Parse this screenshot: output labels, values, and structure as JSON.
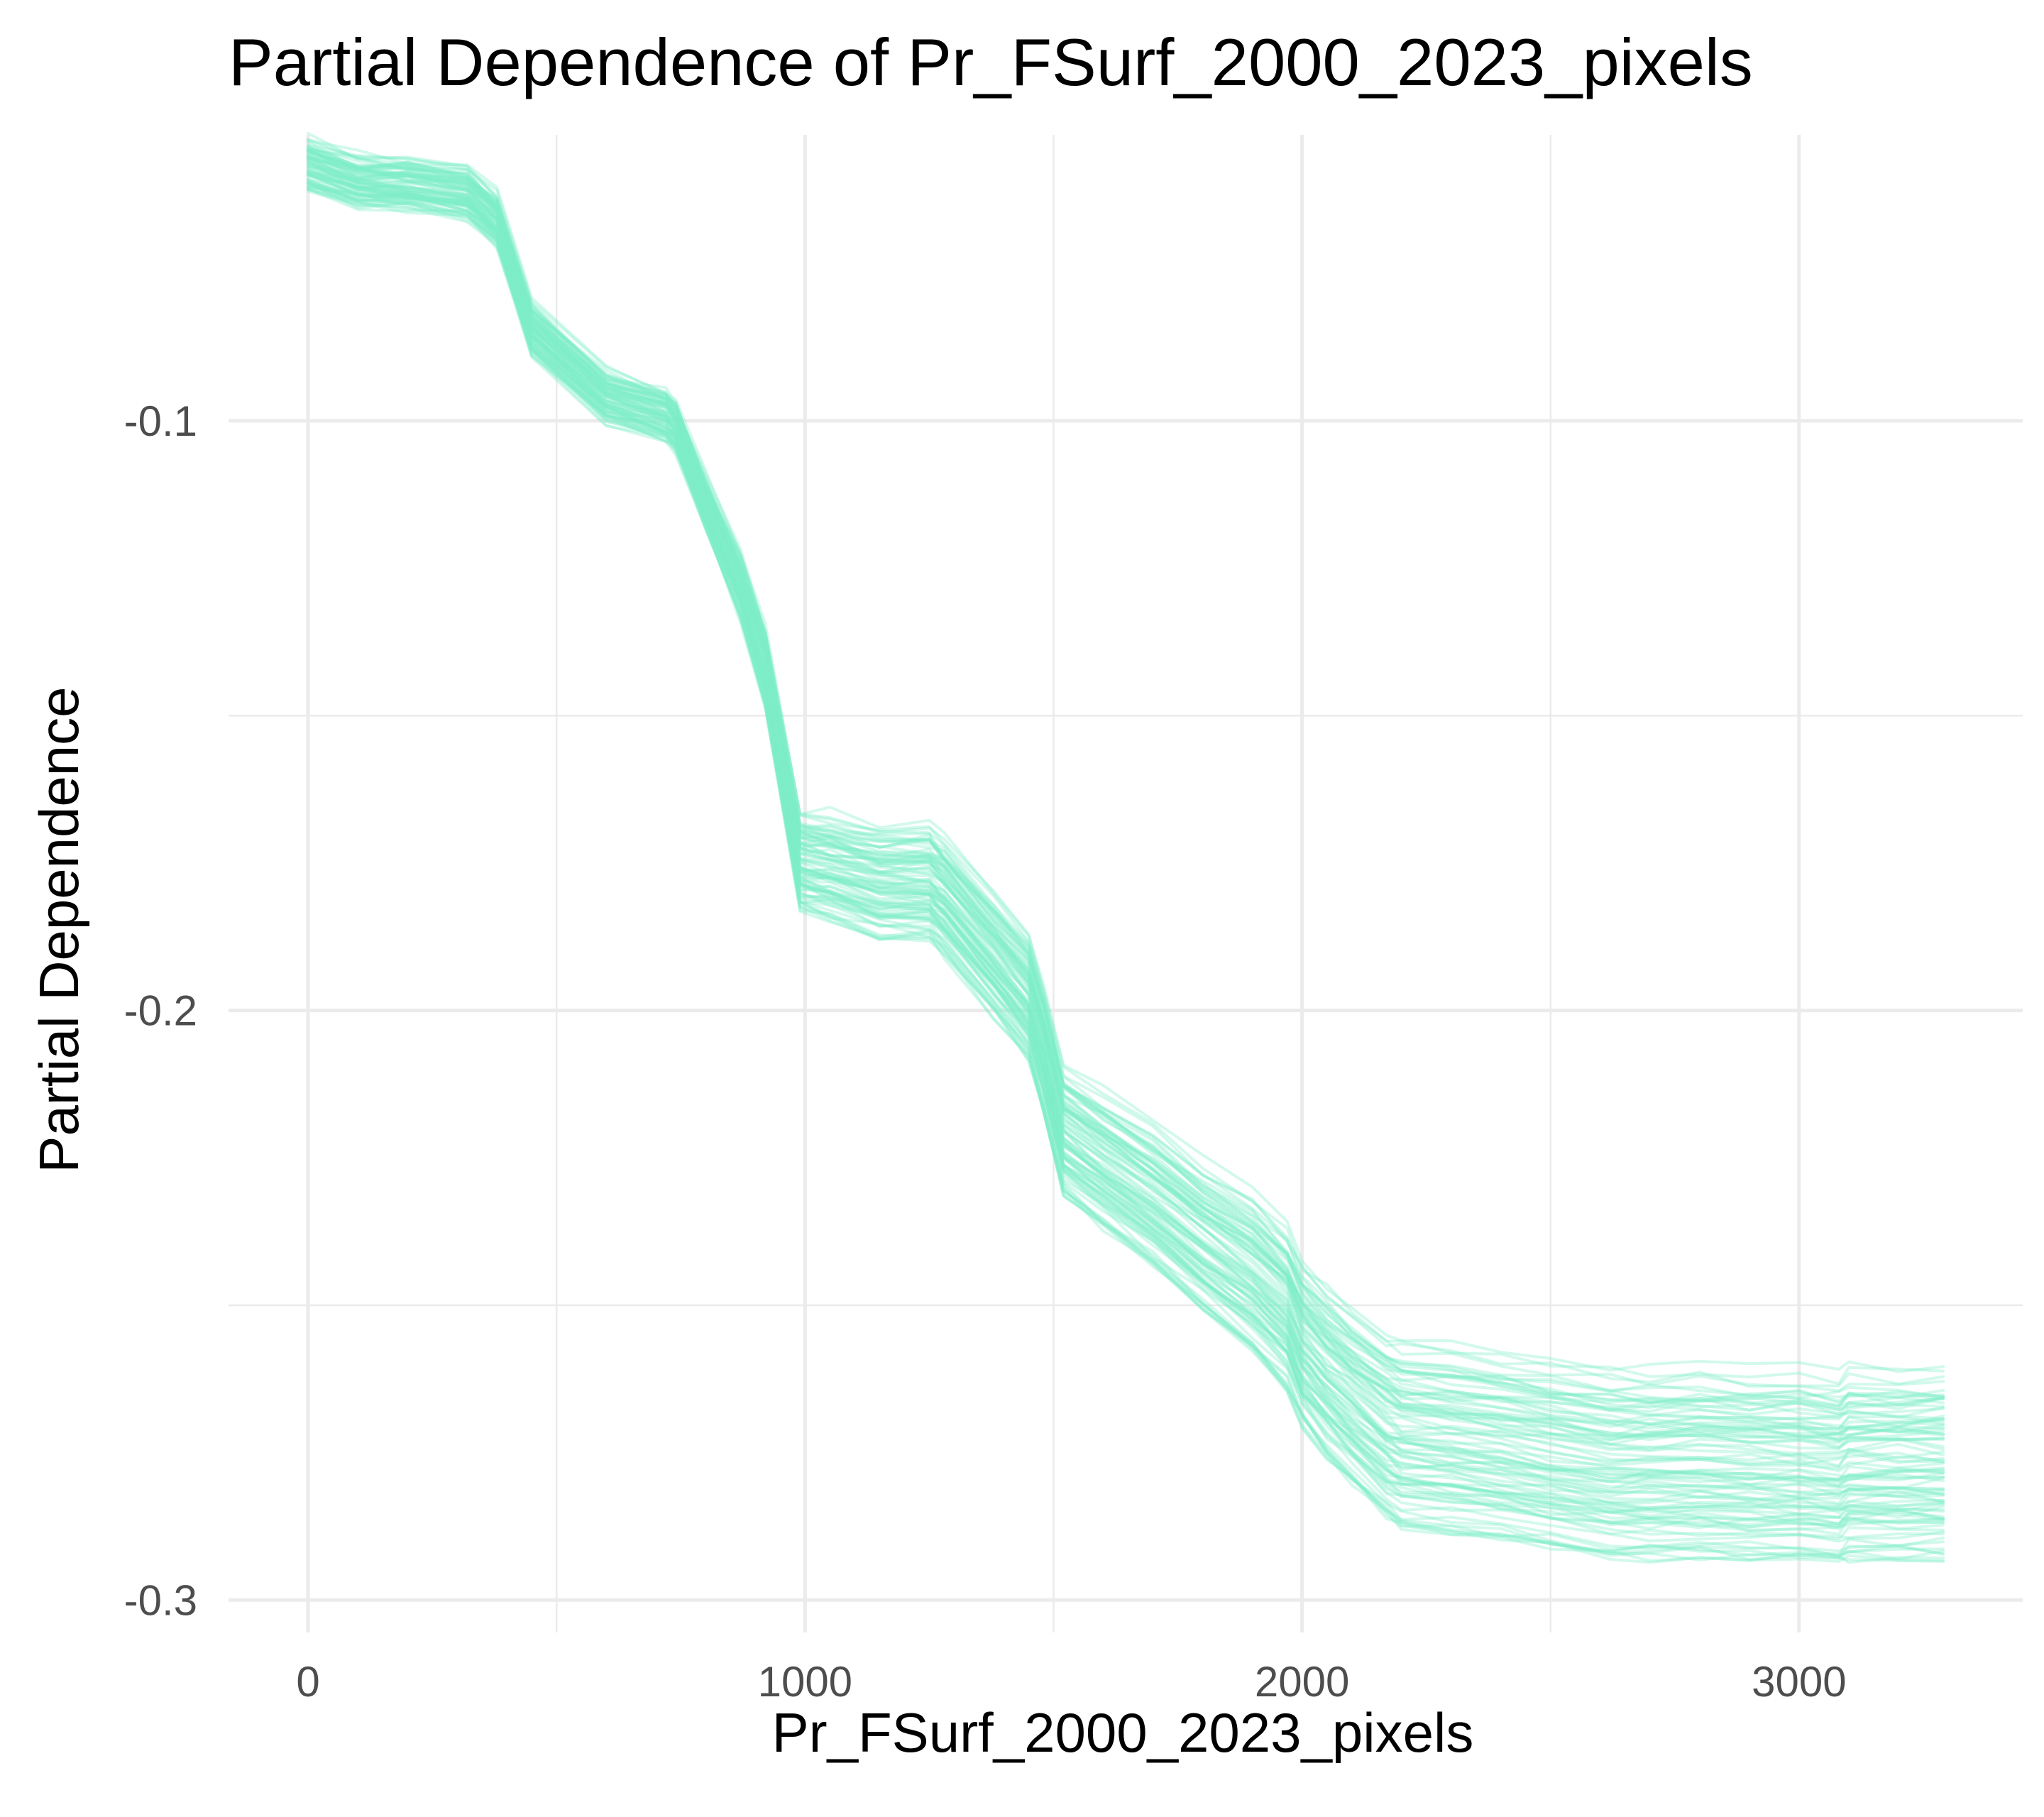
{
  "chart_data": {
    "type": "line",
    "title": "Partial Dependence of Pr_FSurf_2000_2023_pixels",
    "xlabel": "Pr_FSurf_2000_2023_pixels",
    "ylabel": "Partial Dependence",
    "xlim": [
      -160,
      3450
    ],
    "ylim": [
      -0.3055,
      -0.0515
    ],
    "x_ticks": [
      0,
      1000,
      2000,
      3000
    ],
    "x_tick_labels": [
      "0",
      "1000",
      "2000",
      "3000"
    ],
    "y_ticks": [
      -0.1,
      -0.2,
      -0.3
    ],
    "y_tick_labels": [
      "-0.1",
      "-0.2",
      "-0.3"
    ],
    "grid": true,
    "legend": "none",
    "line_color": "#7FEFC9",
    "line_opacity": 0.35,
    "n_curves": 90,
    "note_curves": "Individual conditional expectation curves; per-curve values derived from the median curve below plus a vertical offset per curve (offset grows from about 0.004 at x=0 to about 0.015 beyond x=2200).",
    "median_curve": {
      "x": [
        0,
        100,
        200,
        320,
        380,
        450,
        600,
        720,
        740,
        800,
        870,
        920,
        990,
        1050,
        1150,
        1250,
        1280,
        1380,
        1450,
        1480,
        1520,
        1600,
        1700,
        1800,
        1900,
        1970,
        2000,
        2050,
        2100,
        2170,
        2200,
        2300,
        2400,
        2500,
        2620,
        2700,
        2800,
        2900,
        3000,
        3080,
        3100,
        3200,
        3290
      ],
      "y": [
        -0.0565,
        -0.0595,
        -0.06,
        -0.0615,
        -0.066,
        -0.0845,
        -0.096,
        -0.099,
        -0.101,
        -0.114,
        -0.128,
        -0.142,
        -0.175,
        -0.176,
        -0.1785,
        -0.1785,
        -0.181,
        -0.191,
        -0.198,
        -0.207,
        -0.221,
        -0.226,
        -0.232,
        -0.239,
        -0.245,
        -0.251,
        -0.257,
        -0.262,
        -0.266,
        -0.271,
        -0.2725,
        -0.2735,
        -0.2745,
        -0.276,
        -0.2775,
        -0.2775,
        -0.2775,
        -0.278,
        -0.278,
        -0.2785,
        -0.2775,
        -0.2775,
        -0.2775
      ]
    },
    "spread": {
      "x": [
        0,
        400,
        800,
        1000,
        1500,
        2000,
        2200,
        3290
      ],
      "half_width": [
        0.004,
        0.004,
        0.004,
        0.008,
        0.01,
        0.013,
        0.015,
        0.015
      ]
    }
  }
}
